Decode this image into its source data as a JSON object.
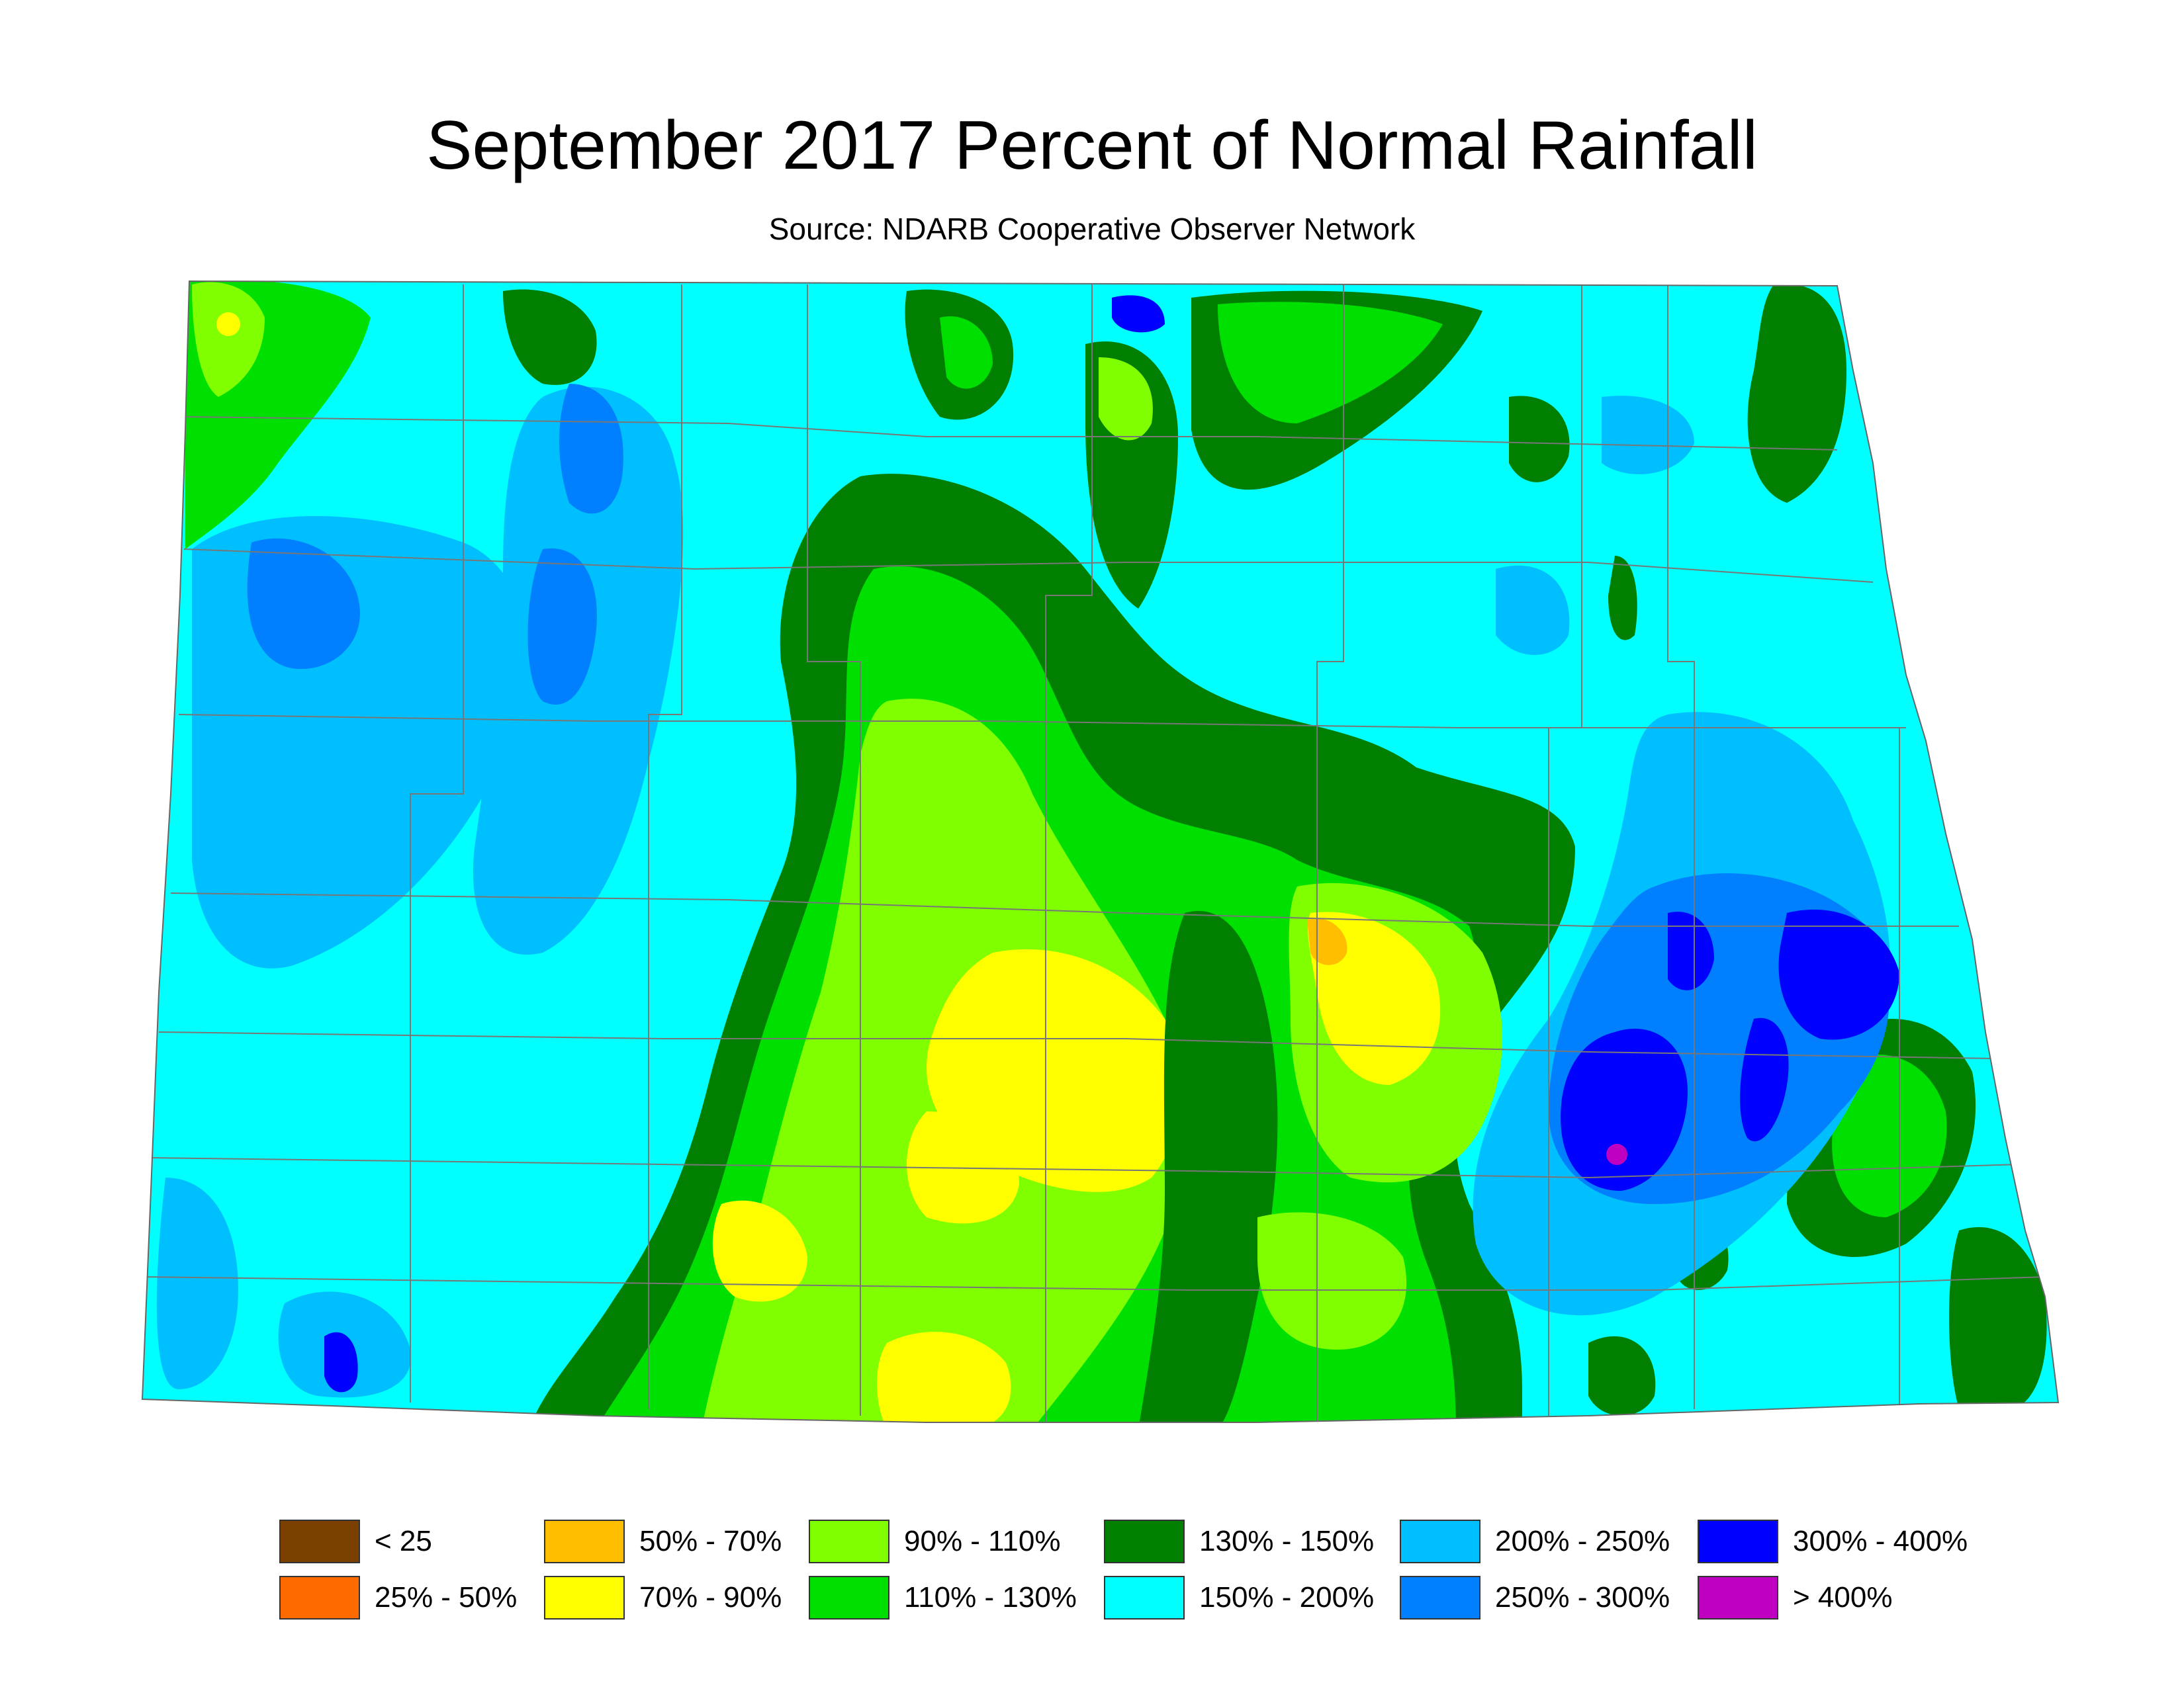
{
  "title": "September 2017 Percent of Normal Rainfall",
  "subtitle": "Source: NDARB Cooperative Observer Network",
  "palette": {
    "c0": "#7b3f00",
    "c1": "#ff6a00",
    "c2": "#ffbf00",
    "c3": "#ffff00",
    "c4": "#80ff00",
    "c5": "#00e000",
    "c6": "#007f00",
    "c7": "#00ffff",
    "c8": "#00bfff",
    "c9": "#0080ff",
    "c10": "#0000ff",
    "c11": "#c000c0"
  },
  "legend": [
    {
      "label": "< 25",
      "color": "#7b3f00"
    },
    {
      "label": "25% - 50%",
      "color": "#ff6a00"
    },
    {
      "label": "50% - 70%",
      "color": "#ffbf00"
    },
    {
      "label": "70% - 90%",
      "color": "#ffff00"
    },
    {
      "label": "90% - 110%",
      "color": "#80ff00"
    },
    {
      "label": "110% - 130%",
      "color": "#00e000"
    },
    {
      "label": "130% - 150%",
      "color": "#007f00"
    },
    {
      "label": "150% - 200%",
      "color": "#00ffff"
    },
    {
      "label": "200% - 250%",
      "color": "#00bfff"
    },
    {
      "label": "250% - 300%",
      "color": "#0080ff"
    },
    {
      "label": "300% - 400%",
      "color": "#0000ff"
    },
    {
      "label": "> 400%",
      "color": "#c000c0"
    }
  ]
}
